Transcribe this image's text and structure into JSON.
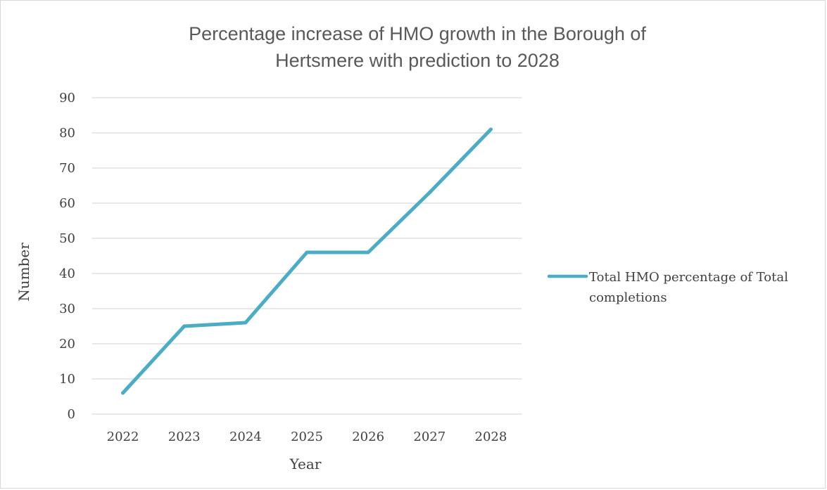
{
  "chart_data": {
    "type": "line",
    "title_lines": [
      "Percentage increase of HMO growth in the Borough of",
      "Hertsmere with prediction to 2028"
    ],
    "xlabel": "Year",
    "ylabel": "Number",
    "categories": [
      "2022",
      "2023",
      "2024",
      "2025",
      "2026",
      "2027",
      "2028"
    ],
    "series": [
      {
        "name": "Total HMO percentage of Total completions",
        "values": [
          6,
          25,
          26,
          46,
          46,
          63,
          81
        ],
        "color": "#4bacc6"
      }
    ],
    "ylim": [
      0,
      90
    ],
    "yticks": [
      0,
      10,
      20,
      30,
      40,
      50,
      60,
      70,
      80,
      90
    ],
    "grid": true,
    "legend_position": "right",
    "legend_lines": [
      "Total HMO percentage of Total",
      "completions"
    ]
  }
}
